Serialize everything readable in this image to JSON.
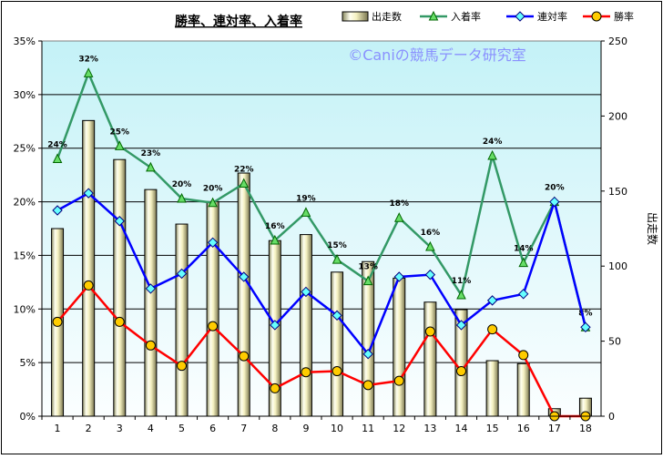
{
  "chart_data": {
    "type": "bar+line",
    "title": "勝率、連対率、入着率",
    "watermark": "©Caniの競馬データ研究室",
    "categories": [
      "1",
      "2",
      "3",
      "4",
      "5",
      "6",
      "7",
      "8",
      "9",
      "10",
      "11",
      "12",
      "13",
      "14",
      "15",
      "16",
      "17",
      "18"
    ],
    "bars": {
      "name": "出走数",
      "axis": "right",
      "values": [
        125,
        197,
        171,
        151,
        128,
        143,
        162,
        117,
        121,
        96,
        103,
        92,
        76,
        71,
        37,
        35,
        5,
        12
      ]
    },
    "series": [
      {
        "name": "入着率",
        "axis": "left",
        "color": "#339966",
        "marker": "triangle",
        "values": [
          24.0,
          32.0,
          25.2,
          23.2,
          20.3,
          19.9,
          21.7,
          16.4,
          19.0,
          14.6,
          12.6,
          18.5,
          15.8,
          11.3,
          24.3,
          14.3,
          20.0,
          8.3
        ],
        "labels": [
          "24%",
          "32%",
          "25%",
          "23%",
          "20%",
          "20%",
          "22%",
          "16%",
          "19%",
          "15%",
          "13%",
          "18%",
          "16%",
          "11%",
          "24%",
          "14%",
          "20%",
          "8%"
        ]
      },
      {
        "name": "連対率",
        "axis": "left",
        "color": "#0000ff",
        "marker": "diamond",
        "values": [
          19.2,
          20.8,
          18.2,
          11.9,
          13.3,
          16.2,
          13.0,
          8.5,
          11.6,
          9.4,
          5.8,
          13.0,
          13.2,
          8.5,
          10.8,
          11.4,
          20.0,
          8.3
        ]
      },
      {
        "name": "勝率",
        "axis": "left",
        "color": "#ff0000",
        "marker": "circle",
        "values": [
          8.8,
          12.2,
          8.8,
          6.6,
          4.7,
          8.4,
          5.6,
          2.6,
          4.1,
          4.2,
          2.9,
          3.3,
          7.9,
          4.2,
          8.1,
          5.7,
          0.0,
          0.0
        ]
      }
    ],
    "y_left": {
      "min": 0,
      "max": 35,
      "step": 5,
      "suffix": "%"
    },
    "y_right": {
      "min": 0,
      "max": 250,
      "step": 50,
      "label": "出走数"
    },
    "legend_position": "top-right",
    "grid": true
  }
}
